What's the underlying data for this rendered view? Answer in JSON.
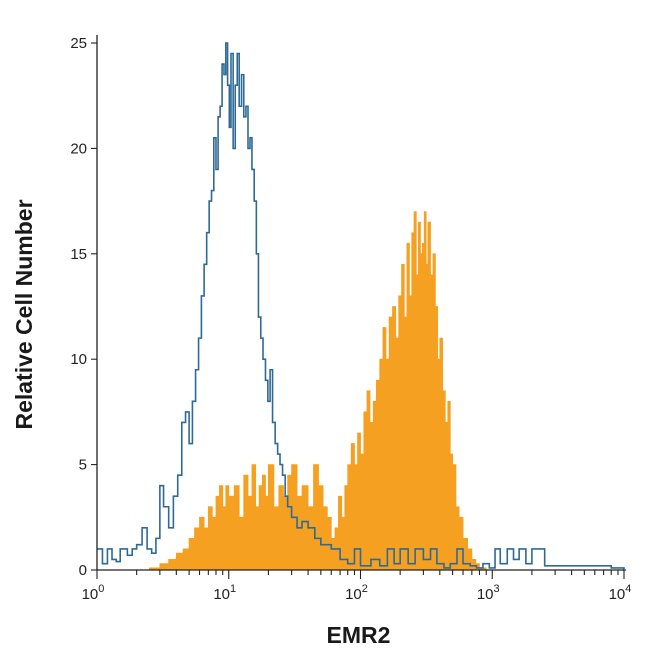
{
  "chart_data": {
    "type": "area",
    "xlabel": "EMR2",
    "ylabel": "Relative Cell Number",
    "xscale": "log",
    "xlim": [
      1,
      10000
    ],
    "ylim": [
      0,
      25
    ],
    "xticks": [
      {
        "value": 1,
        "base": "10",
        "exp": "0"
      },
      {
        "value": 10,
        "base": "10",
        "exp": "1"
      },
      {
        "value": 100,
        "base": "10",
        "exp": "2"
      },
      {
        "value": 1000,
        "base": "10",
        "exp": "3"
      },
      {
        "value": 10000,
        "base": "10",
        "exp": "4"
      }
    ],
    "yticks": [
      "0",
      "5",
      "10",
      "15",
      "20",
      "25"
    ],
    "grid": false,
    "series": [
      {
        "style": "outline",
        "color": "#2e6a96",
        "x": [
          1.0,
          1.1,
          1.2,
          1.3,
          1.4,
          1.5,
          1.7,
          1.85,
          2.0,
          2.2,
          2.4,
          2.6,
          2.8,
          3.0,
          3.2,
          3.5,
          3.8,
          4.1,
          4.4,
          4.7,
          5.0,
          5.3,
          5.6,
          5.9,
          6.2,
          6.5,
          6.8,
          7.1,
          7.4,
          7.7,
          8.0,
          8.3,
          8.6,
          8.9,
          9.2,
          9.5,
          9.8,
          10.1,
          10.4,
          10.8,
          11.2,
          11.6,
          12.0,
          12.5,
          13.0,
          13.5,
          14.0,
          14.5,
          15.0,
          15.6,
          16.2,
          16.8,
          17.5,
          18.2,
          19.0,
          19.8,
          20.6,
          21.5,
          22.5,
          23.5,
          24.5,
          25.6,
          26.8,
          28,
          30,
          33,
          36,
          40,
          45,
          50,
          60,
          70,
          80,
          90,
          100,
          120,
          140,
          160,
          180,
          200,
          230,
          260,
          300,
          340,
          380,
          430,
          480,
          540,
          600,
          680,
          760,
          850,
          950,
          1050,
          1150,
          1300,
          1450,
          1600,
          1800,
          2000,
          2500,
          3000,
          5000,
          8000,
          10000
        ],
        "values": [
          1.0,
          0.3,
          1.0,
          0.5,
          0.4,
          1.0,
          0.7,
          1.0,
          1.2,
          2.0,
          1.0,
          0.8,
          1.5,
          4.0,
          3.0,
          2.0,
          3.5,
          4.5,
          7.0,
          7.5,
          6.0,
          8.0,
          9.5,
          11.0,
          13.0,
          14.5,
          16.0,
          17.5,
          18.0,
          20.5,
          19.0,
          21.5,
          22.0,
          24.0,
          23.5,
          25.0,
          23.0,
          21.0,
          24.5,
          20.0,
          23.0,
          24.5,
          22.0,
          23.5,
          21.5,
          22.0,
          20.0,
          20.5,
          19.0,
          17.5,
          15.0,
          12.0,
          11.0,
          10.0,
          9.0,
          8.0,
          9.5,
          7.0,
          6.0,
          5.5,
          5.0,
          4.5,
          3.5,
          3.0,
          2.5,
          2.0,
          2.3,
          2.0,
          1.5,
          1.2,
          1.0,
          0.5,
          0.3,
          1.0,
          0.2,
          0.5,
          0.2,
          1.0,
          0.3,
          1.0,
          0.3,
          1.0,
          0.5,
          1.0,
          0.3,
          0.1,
          0.3,
          1.0,
          0.3,
          0.2,
          0.1,
          0.3,
          0.1,
          1.0,
          0.3,
          1.0,
          0.5,
          1.0,
          0.3,
          1.0,
          0.2,
          0.2,
          0.2,
          0.1,
          0.0
        ]
      },
      {
        "style": "filled",
        "color": "#f5a020",
        "x": [
          2.0,
          2.5,
          3.0,
          3.5,
          4.0,
          4.5,
          5.0,
          5.5,
          6.0,
          6.5,
          7.0,
          7.5,
          8.0,
          8.5,
          9.0,
          9.5,
          10,
          11,
          12,
          13,
          14,
          15,
          16,
          17,
          18,
          19,
          20,
          22,
          24,
          26,
          28,
          30,
          33,
          36,
          40,
          44,
          48,
          52,
          56,
          60,
          64,
          68,
          72,
          76,
          80,
          85,
          90,
          95,
          100,
          106,
          112,
          118,
          125,
          132,
          140,
          148,
          156,
          165,
          175,
          185,
          195,
          205,
          215,
          225,
          235,
          245,
          255,
          265,
          275,
          285,
          295,
          305,
          315,
          325,
          340,
          355,
          370,
          385,
          400,
          420,
          440,
          460,
          480,
          500,
          530,
          560,
          600,
          650,
          700,
          750,
          800,
          900
        ],
        "values": [
          0.0,
          0.1,
          0.3,
          0.5,
          0.8,
          1.0,
          1.5,
          2.0,
          2.5,
          2.0,
          3.0,
          2.5,
          3.5,
          4.0,
          3.0,
          4.0,
          3.5,
          4.0,
          2.5,
          4.5,
          3.5,
          5.0,
          3.0,
          4.0,
          4.5,
          3.5,
          5.0,
          3.0,
          4.0,
          3.5,
          4.5,
          5.0,
          3.5,
          4.0,
          3.0,
          5.0,
          4.0,
          3.0,
          2.5,
          1.5,
          2.0,
          3.5,
          2.5,
          4.0,
          5.0,
          6.0,
          5.0,
          6.5,
          5.5,
          7.5,
          8.5,
          7.0,
          8.0,
          9.0,
          10.0,
          11.5,
          10.0,
          12.0,
          12.5,
          11.0,
          13.0,
          14.5,
          12.0,
          15.5,
          13.0,
          16.0,
          17.0,
          14.0,
          16.5,
          15.0,
          15.5,
          17.0,
          14.5,
          16.5,
          14.0,
          15.0,
          12.5,
          10.0,
          11.0,
          8.5,
          7.0,
          8.0,
          5.5,
          5.0,
          3.0,
          2.5,
          1.5,
          1.0,
          0.5,
          0.3,
          0.1,
          0.0
        ]
      }
    ]
  }
}
